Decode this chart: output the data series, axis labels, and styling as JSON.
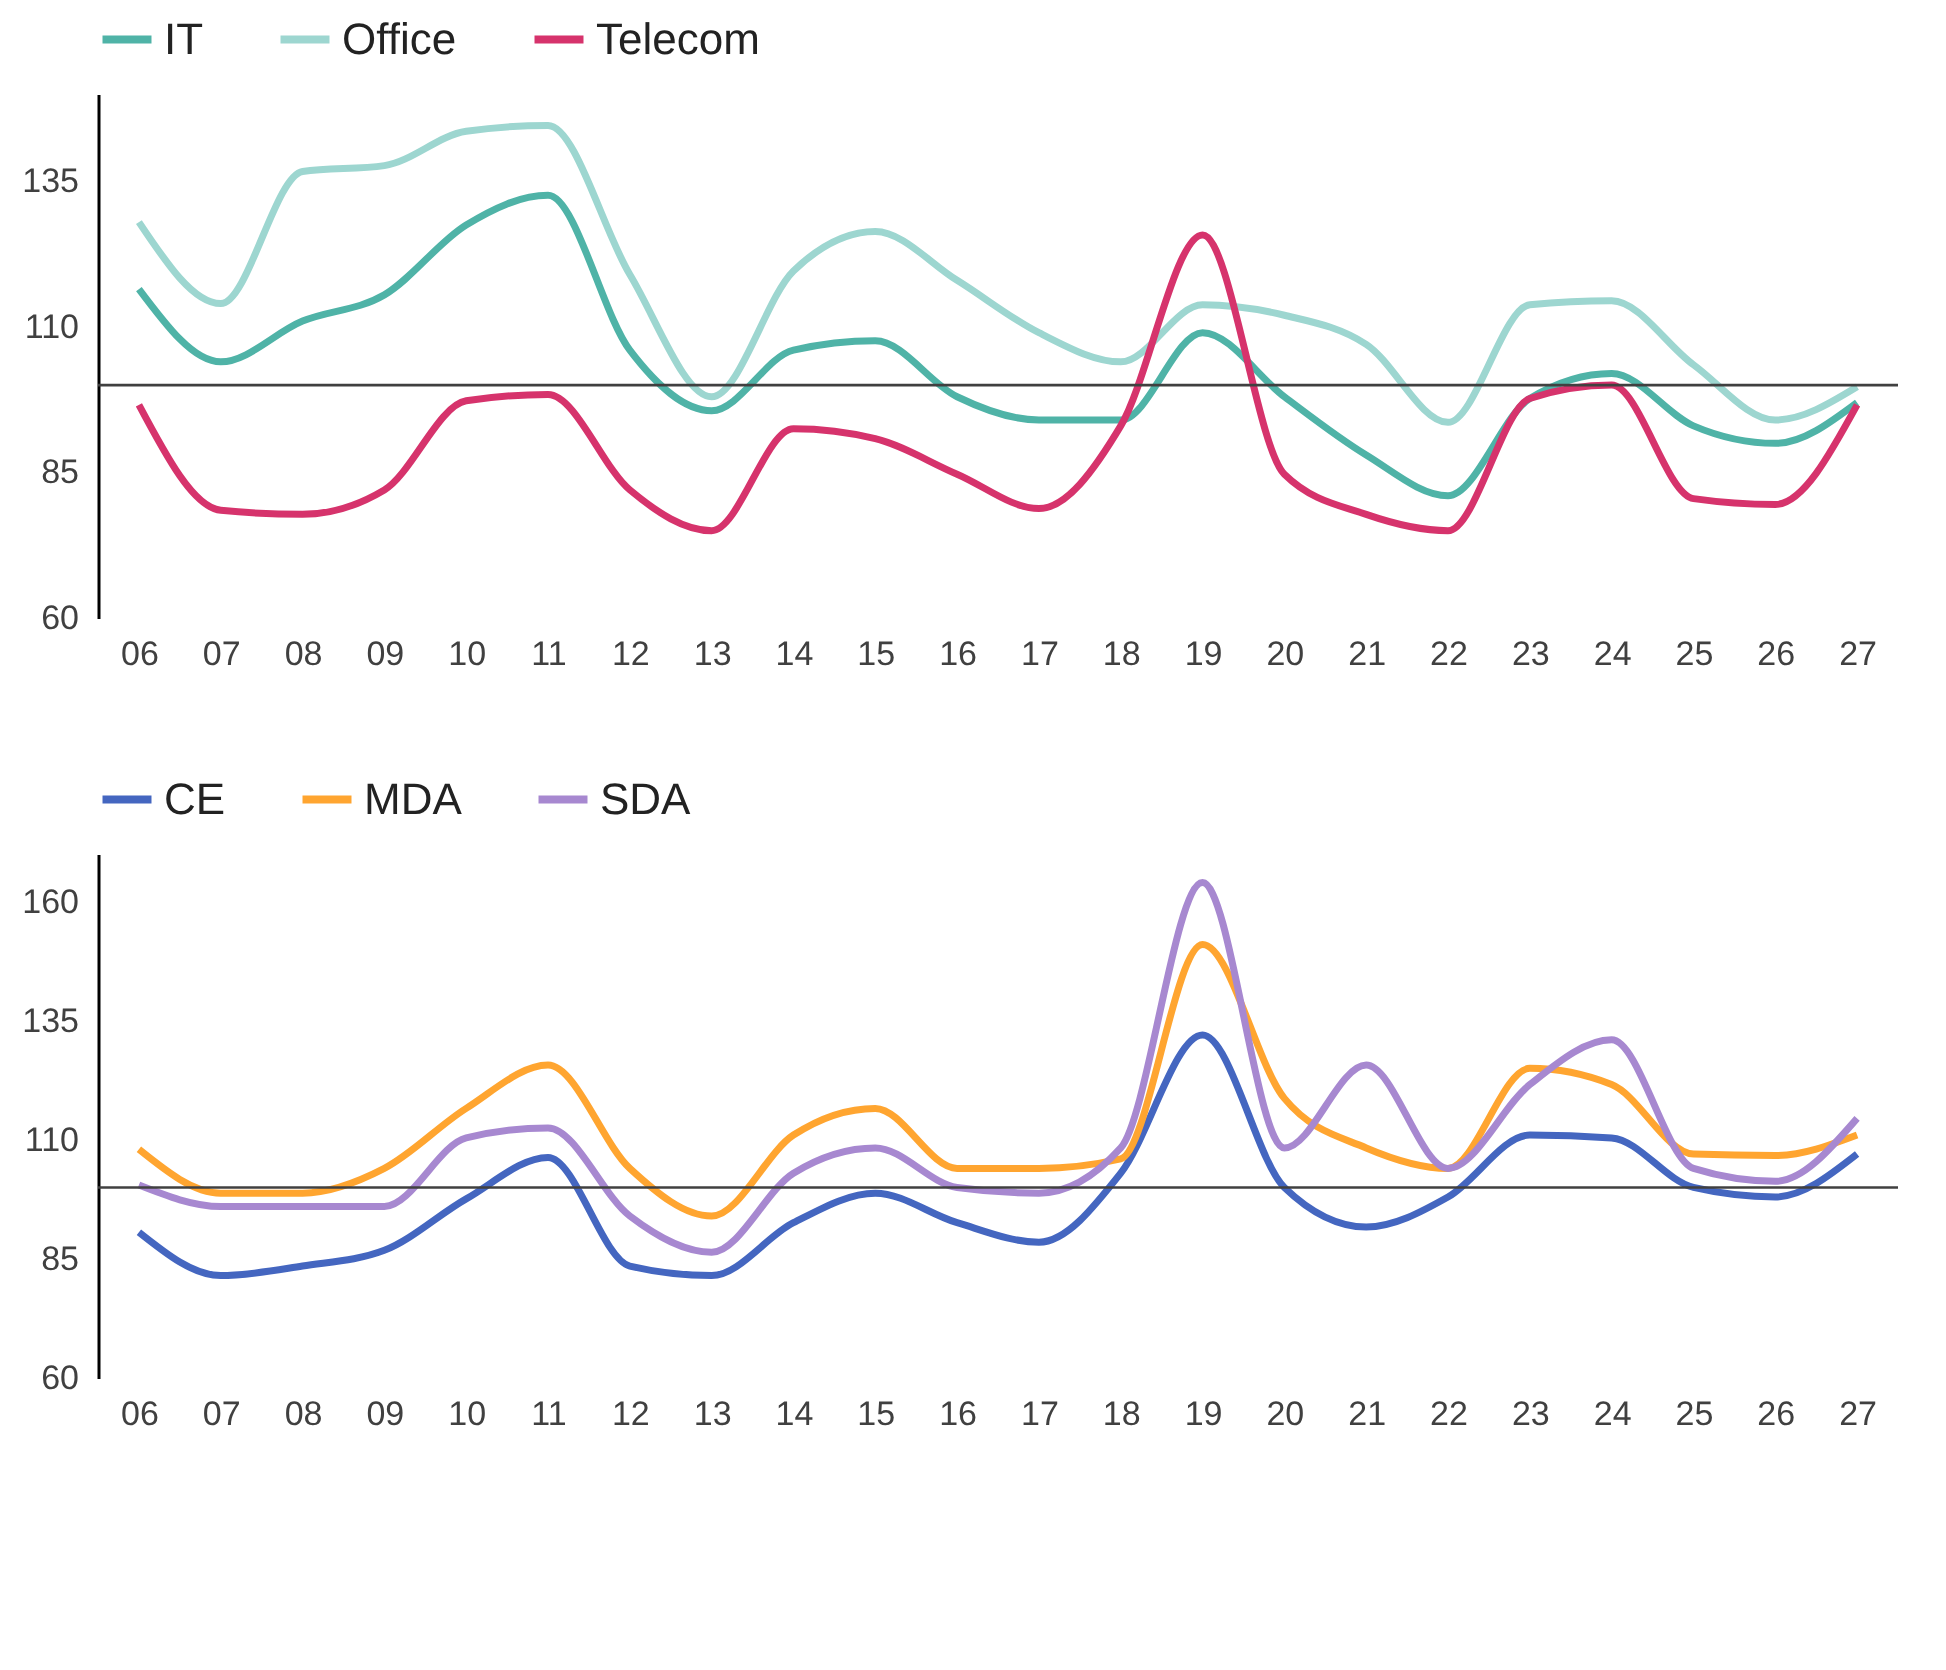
{
  "chart_data": [
    {
      "type": "line",
      "categories": [
        "06",
        "07",
        "08",
        "09",
        "10",
        "11",
        "12",
        "13",
        "14",
        "15",
        "16",
        "17",
        "18",
        "19",
        "20",
        "21",
        "22",
        "23",
        "24",
        "25",
        "26",
        "27"
      ],
      "ylim": [
        60,
        150
      ],
      "yticks": [
        60,
        85,
        110,
        135
      ],
      "legend": "top",
      "grid": false,
      "ref_lines": [
        {
          "axis": "y",
          "value": 100,
          "color": "#404040"
        }
      ],
      "series": [
        {
          "name": "IT",
          "color": "#4fb3a7",
          "values": [
            116.5,
            104,
            111,
            115.5,
            127.5,
            132.6,
            106,
            95.6,
            106,
            107.6,
            98,
            94,
            94,
            109,
            98,
            88,
            81,
            97.7,
            102,
            93,
            90,
            97
          ]
        },
        {
          "name": "Office",
          "color": "#9dd6d0",
          "values": [
            128,
            114,
            136.7,
            137.7,
            143.6,
            144.6,
            119,
            98,
            119.6,
            126.4,
            118,
            109,
            104,
            113.8,
            112,
            107,
            93.6,
            113.8,
            114.5,
            103.5,
            94,
            99.7
          ]
        },
        {
          "name": "Telecom",
          "color": "#d6336c",
          "values": [
            96.6,
            78.5,
            77.8,
            82,
            97.3,
            98.4,
            82,
            75,
            92.5,
            90.8,
            84.7,
            78.8,
            93,
            125.8,
            84.7,
            77.8,
            75,
            97.7,
            100,
            80.5,
            79.5,
            96.6
          ]
        }
      ]
    },
    {
      "type": "line",
      "categories": [
        "06",
        "07",
        "08",
        "09",
        "10",
        "11",
        "12",
        "13",
        "14",
        "15",
        "16",
        "17",
        "18",
        "19",
        "20",
        "21",
        "22",
        "23",
        "24",
        "25",
        "26",
        "27"
      ],
      "ylim": [
        60,
        170
      ],
      "yticks": [
        60,
        85,
        110,
        135,
        160
      ],
      "legend": "top",
      "grid": false,
      "ref_lines": [
        {
          "axis": "y",
          "value": 100,
          "color": "#404040"
        }
      ],
      "series": [
        {
          "name": "CE",
          "color": "#4466c0",
          "values": [
            90.6,
            81.5,
            83.5,
            86.8,
            97.6,
            106.3,
            83.5,
            81.5,
            92.6,
            98.8,
            92.6,
            88.5,
            103,
            132,
            100,
            91.7,
            98,
            111,
            110.4,
            100,
            98,
            107
          ]
        },
        {
          "name": "MDA",
          "color": "#ffa530",
          "values": [
            108,
            98.8,
            98.8,
            104,
            116.6,
            125.7,
            104,
            94,
            111,
            116.6,
            104,
            104,
            106,
            151,
            118.7,
            108.3,
            104,
            125,
            121.6,
            107,
            106.7,
            111
          ]
        },
        {
          "name": "SDA",
          "color": "#a788d0",
          "values": [
            100.5,
            96,
            96,
            96,
            110.4,
            112.5,
            94,
            86.4,
            103,
            108.3,
            100,
            98.8,
            108.3,
            164,
            108.3,
            125.7,
            104,
            121.6,
            131,
            104,
            101.3,
            114.5
          ]
        }
      ]
    }
  ]
}
